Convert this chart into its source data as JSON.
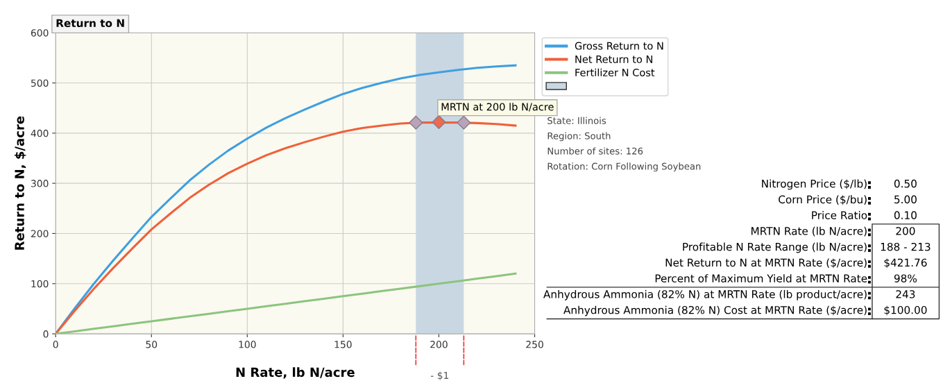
{
  "chart_data": [
    {
      "type": "line",
      "title": "Return to N",
      "xlabel": "N Rate, lb N/acre",
      "ylabel": "Return to N, $/acre",
      "x": [
        0,
        10,
        20,
        30,
        40,
        50,
        60,
        70,
        80,
        90,
        100,
        110,
        120,
        130,
        140,
        150,
        160,
        170,
        180,
        190,
        200,
        210,
        220,
        230,
        240
      ],
      "series": [
        {
          "name": "Gross Return to N",
          "color": "#3f9fe0",
          "values": [
            0,
            51,
            100,
            146,
            190,
            233,
            270,
            306,
            337,
            365,
            389,
            411,
            430,
            447,
            463,
            478,
            490,
            500,
            509,
            516,
            521,
            526,
            530,
            533,
            535
          ]
        },
        {
          "name": "Net Return to N",
          "color": "#f0603a",
          "values": [
            0,
            46,
            90,
            131,
            170,
            208,
            240,
            271,
            297,
            320,
            339,
            356,
            370,
            382,
            393,
            403,
            410,
            415,
            419,
            421,
            421,
            421,
            420,
            418,
            415
          ]
        },
        {
          "name": "Fertilizer N Cost",
          "color": "#8cc47e",
          "values": [
            0,
            5,
            10,
            15,
            20,
            25,
            30,
            35,
            40,
            45,
            50,
            55,
            60,
            65,
            70,
            75,
            80,
            85,
            90,
            95,
            100,
            105,
            110,
            115,
            120
          ]
        },
        {
          "type": "scatter",
          "marker": "diamond",
          "x": [
            188,
            200,
            213
          ],
          "values": [
            421,
            422,
            421
          ],
          "colors": [
            "#b9a3b8",
            "#ec6a4e",
            "#b9a3b8"
          ]
        }
      ],
      "bands": [
        {
          "axis": "x",
          "from": 188,
          "to": 213,
          "color": "#c9d7e3"
        }
      ],
      "annotations": [
        {
          "text": "MRTN at 200 lb N/acre",
          "x": 200,
          "y": 422
        },
        "- $1"
      ],
      "xlim": [
        0,
        250
      ],
      "xticks": [
        0,
        50,
        100,
        150,
        200,
        250
      ],
      "ylim": [
        0,
        600
      ],
      "yticks": [
        0,
        100,
        200,
        300,
        400,
        500,
        600
      ],
      "grid": true,
      "legend": "right",
      "marker": "none",
      "line_style": "solid"
    },
    {
      "type": "other",
      "annotations": [
        "State: Illinois",
        "Region: South",
        "Number of sites: 126",
        "Rotation: Corn Following Soybean"
      ],
      "categories": [
        "Nitrogen Price ($/lb)",
        "Corn Price ($/bu)",
        "Price Ratio",
        "MRTN Rate (lb N/acre)",
        "Profitable N Rate Range (lb N/acre)",
        "Net Return to N at MRTN Rate ($/acre)",
        "Percent of Maximum Yield at MRTN Rate",
        "Anhydrous Ammonia (82% N) at MRTN Rate (lb product/acre)",
        "Anhydrous Ammonia (82% N) Cost at MRTN Rate ($/acre)"
      ],
      "value_labels": [
        "0.50",
        "5.00",
        "0.10",
        "200",
        "188 - 213",
        "$421.76",
        "98%",
        "243",
        "$100.00"
      ]
    }
  ]
}
